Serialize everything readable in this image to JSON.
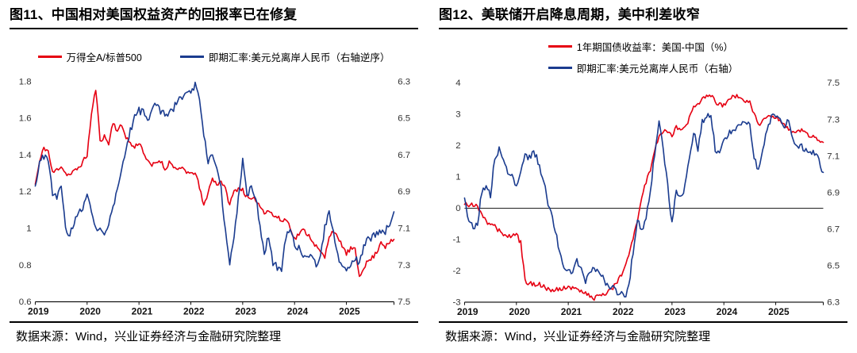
{
  "panels": [
    {
      "title": "图11、中国相对美国权益资产的回报率已在修复",
      "source": "数据来源：Wind，兴业证券经济与金融研究院整理"
    },
    {
      "title": "图12、美联储开启降息周期，美中利差收窄",
      "source": "数据来源：Wind，兴业证券经济与金融研究院整理"
    }
  ],
  "colors": {
    "red": "#e60012",
    "blue": "#1b3c8f",
    "axis": "#333333",
    "axis_line": "#000000"
  },
  "chart_data": [
    {
      "type": "line",
      "title": "图11、中国相对美国权益资产的回报率已在修复",
      "x_labels": [
        "2019",
        "2020",
        "2021",
        "2022",
        "2023",
        "2024",
        "2025"
      ],
      "x_frequency": "monthly",
      "grid": false,
      "zero_line": false,
      "legend_position": "top",
      "left_axis": {
        "min": 0.6,
        "max": 1.8,
        "ticks": [
          1.8,
          1.6,
          1.4,
          1.2,
          1,
          0.8,
          0.6
        ]
      },
      "right_axis": {
        "min": 6.3,
        "max": 7.5,
        "inverted": true,
        "ticks": [
          6.3,
          6.5,
          6.7,
          6.9,
          7.1,
          7.3,
          7.5
        ]
      },
      "series": [
        {
          "name": "万得全A/标普500",
          "axis": "left",
          "color": "#e60012",
          "values": [
            1.24,
            1.36,
            1.44,
            1.42,
            1.3,
            1.32,
            1.34,
            1.3,
            1.29,
            1.31,
            1.33,
            1.36,
            1.4,
            1.62,
            1.76,
            1.48,
            1.5,
            1.46,
            1.58,
            1.53,
            1.56,
            1.5,
            1.46,
            1.44,
            1.47,
            1.42,
            1.36,
            1.34,
            1.36,
            1.37,
            1.32,
            1.36,
            1.34,
            1.31,
            1.33,
            1.31,
            1.29,
            1.31,
            1.22,
            1.12,
            1.2,
            1.27,
            1.24,
            1.26,
            1.21,
            1.13,
            1.2,
            1.22,
            1.21,
            1.17,
            1.15,
            1.16,
            1.12,
            1.09,
            1.1,
            1.07,
            1.06,
            1.04,
            1.05,
            1.01,
            0.94,
            0.97,
            0.99,
            0.97,
            0.94,
            0.9,
            0.87,
            0.84,
            0.96,
            0.99,
            0.94,
            0.91,
            0.86,
            0.89,
            0.88,
            0.74,
            0.79,
            0.82,
            0.84,
            0.87,
            0.93,
            0.9,
            0.92,
            0.94
          ]
        },
        {
          "name": "即期汇率:美元兑离岸人民币（右轴逆序）",
          "axis": "right",
          "color": "#1b3c8f",
          "values": [
            6.87,
            6.74,
            6.71,
            6.73,
            6.91,
            6.93,
            6.88,
            7.09,
            7.14,
            7.07,
            7.02,
            6.99,
            6.93,
            7.0,
            7.1,
            7.09,
            7.13,
            7.07,
            6.99,
            6.88,
            6.78,
            6.69,
            6.57,
            6.5,
            6.46,
            6.47,
            6.52,
            6.47,
            6.42,
            6.46,
            6.48,
            6.47,
            6.45,
            6.39,
            6.38,
            6.36,
            6.35,
            6.32,
            6.38,
            6.58,
            6.74,
            6.7,
            6.76,
            6.89,
            7.12,
            7.28,
            7.14,
            6.94,
            6.73,
            6.92,
            6.87,
            6.93,
            7.08,
            7.24,
            7.14,
            7.29,
            7.31,
            7.33,
            7.14,
            7.1,
            7.19,
            7.21,
            7.25,
            7.25,
            7.26,
            7.3,
            7.26,
            7.09,
            7.01,
            7.13,
            7.25,
            7.31,
            7.33,
            7.29,
            7.26,
            7.3,
            7.19,
            7.16,
            7.15,
            7.13,
            7.11,
            7.12,
            7.07,
            7.01
          ]
        }
      ]
    },
    {
      "type": "line",
      "title": "图12、美联储开启降息周期，美中利差收窄",
      "x_labels": [
        "2019",
        "2020",
        "2021",
        "2022",
        "2023",
        "2024",
        "2025"
      ],
      "x_frequency": "monthly",
      "grid": false,
      "zero_line": true,
      "legend_position": "top",
      "left_axis": {
        "min": -3,
        "max": 4,
        "ticks": [
          4,
          3,
          2,
          1,
          0,
          -1,
          -2,
          -3
        ]
      },
      "right_axis": {
        "min": 6.3,
        "max": 7.5,
        "inverted": false,
        "ticks": [
          7.5,
          7.3,
          7.1,
          6.9,
          6.7,
          6.5,
          6.3
        ]
      },
      "series": [
        {
          "name": "1年期国债收益率：美国-中国（%）",
          "axis": "left",
          "color": "#e60012",
          "values": [
            0.12,
            0.1,
            0.08,
            0.05,
            -0.15,
            -0.45,
            -0.48,
            -0.6,
            -0.72,
            -0.88,
            -0.92,
            -0.88,
            -0.85,
            -1.1,
            -2.3,
            -2.4,
            -2.45,
            -2.4,
            -2.5,
            -2.55,
            -2.6,
            -2.62,
            -2.58,
            -2.52,
            -2.5,
            -2.55,
            -2.62,
            -2.68,
            -2.72,
            -2.8,
            -2.86,
            -2.82,
            -2.76,
            -2.7,
            -2.62,
            -2.4,
            -2.2,
            -1.95,
            -1.55,
            -0.95,
            -0.45,
            0.3,
            0.85,
            1.25,
            1.85,
            2.3,
            2.5,
            2.4,
            2.3,
            2.6,
            2.45,
            2.6,
            2.85,
            3.2,
            3.3,
            3.5,
            3.55,
            3.6,
            3.4,
            3.3,
            3.3,
            3.45,
            3.55,
            3.6,
            3.5,
            3.45,
            3.35,
            3.0,
            2.65,
            2.85,
            2.95,
            2.85,
            2.9,
            2.8,
            2.7,
            2.5,
            2.4,
            2.45,
            2.5,
            2.4,
            2.3,
            2.25,
            2.18,
            2.1
          ]
        },
        {
          "name": "即期汇率:美元兑离岸人民币（右轴）",
          "axis": "right",
          "color": "#1b3c8f",
          "values": [
            6.87,
            6.74,
            6.71,
            6.73,
            6.91,
            6.93,
            6.88,
            7.09,
            7.14,
            7.07,
            7.02,
            6.99,
            6.93,
            7.0,
            7.1,
            7.09,
            7.13,
            7.07,
            6.99,
            6.88,
            6.78,
            6.69,
            6.57,
            6.5,
            6.46,
            6.47,
            6.52,
            6.47,
            6.42,
            6.46,
            6.48,
            6.47,
            6.45,
            6.39,
            6.38,
            6.36,
            6.35,
            6.32,
            6.38,
            6.58,
            6.74,
            6.7,
            6.76,
            6.89,
            7.12,
            7.28,
            7.14,
            6.94,
            6.73,
            6.92,
            6.87,
            6.93,
            7.08,
            7.24,
            7.14,
            7.29,
            7.31,
            7.33,
            7.14,
            7.1,
            7.19,
            7.21,
            7.25,
            7.25,
            7.26,
            7.3,
            7.26,
            7.09,
            7.01,
            7.13,
            7.25,
            7.31,
            7.33,
            7.29,
            7.26,
            7.3,
            7.19,
            7.16,
            7.15,
            7.13,
            7.11,
            7.12,
            7.07,
            7.01
          ]
        }
      ]
    }
  ]
}
